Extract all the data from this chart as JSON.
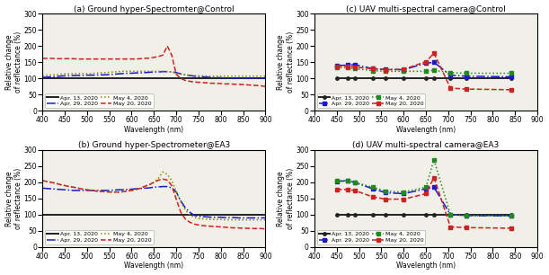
{
  "titles": [
    "(a) Ground hyper-Spectromter@Control",
    "(b) Ground hyper-Spectrometer@EA3",
    "(c) UAV multi-spectral camera@Control",
    "(d) UAV multi-spectral camera@EA3"
  ],
  "ylabel": "Relative change\nof reflectance (%)",
  "xlabel": "Wavelength (nm)",
  "ylim": [
    0,
    300
  ],
  "yticks": [
    0,
    50,
    100,
    150,
    200,
    250,
    300
  ],
  "legend_labels": [
    "Apr. 13, 2020",
    "Apr. 29, 2020",
    "May 4, 2020",
    "May 20, 2020"
  ],
  "colors_ground": [
    "#222222",
    "#1a1acc",
    "#888800",
    "#cc2222"
  ],
  "colors_uav": [
    "#222222",
    "#1a1acc",
    "#228822",
    "#cc2222"
  ],
  "linestyles": [
    "-",
    "-.",
    ":",
    "--"
  ],
  "linewidths": [
    1.4,
    1.1,
    1.1,
    1.1
  ],
  "background_color": "#ffffff",
  "panel_bg": "#f0f0e8",
  "ground_x": [
    400,
    410,
    420,
    430,
    440,
    450,
    460,
    470,
    480,
    490,
    500,
    510,
    520,
    530,
    540,
    550,
    560,
    570,
    580,
    590,
    600,
    610,
    620,
    630,
    640,
    650,
    660,
    670,
    680,
    690,
    700,
    710,
    720,
    730,
    740,
    750,
    760,
    770,
    780,
    790,
    800,
    810,
    820,
    830,
    840,
    850,
    860,
    870,
    880,
    890,
    900
  ],
  "uav_x": [
    450,
    475,
    490,
    531,
    560,
    600,
    650,
    668,
    705,
    740,
    842
  ],
  "ground_control_apr13": [
    100,
    100,
    100,
    100,
    100,
    100,
    100,
    100,
    100,
    100,
    100,
    100,
    100,
    100,
    100,
    100,
    100,
    100,
    100,
    100,
    100,
    100,
    100,
    100,
    100,
    100,
    100,
    100,
    100,
    100,
    100,
    100,
    100,
    100,
    100,
    100,
    100,
    100,
    100,
    100,
    100,
    100,
    100,
    100,
    100,
    100,
    100,
    100,
    100,
    100,
    100
  ],
  "ground_control_apr29": [
    103,
    104,
    105,
    106,
    107,
    108,
    108,
    109,
    109,
    109,
    110,
    110,
    110,
    111,
    111,
    112,
    113,
    114,
    115,
    116,
    116,
    117,
    117,
    118,
    119,
    120,
    120,
    121,
    121,
    120,
    118,
    114,
    111,
    109,
    107,
    106,
    105,
    104,
    103,
    103,
    102,
    101,
    101,
    100,
    100,
    100,
    100,
    100,
    100,
    100,
    100
  ],
  "ground_control_may4": [
    108,
    110,
    111,
    112,
    113,
    114,
    114,
    115,
    115,
    115,
    115,
    115,
    116,
    117,
    118,
    119,
    120,
    121,
    122,
    122,
    122,
    122,
    122,
    122,
    122,
    122,
    122,
    122,
    121,
    120,
    116,
    113,
    111,
    110,
    109,
    108,
    108,
    107,
    107,
    107,
    107,
    107,
    107,
    107,
    107,
    107,
    107,
    107,
    107,
    107,
    107
  ],
  "ground_control_may20": [
    162,
    162,
    162,
    161,
    161,
    161,
    161,
    161,
    160,
    160,
    160,
    160,
    160,
    160,
    160,
    160,
    160,
    160,
    160,
    160,
    160,
    160,
    161,
    162,
    163,
    165,
    168,
    172,
    200,
    172,
    113,
    100,
    94,
    91,
    89,
    88,
    87,
    86,
    85,
    85,
    84,
    83,
    83,
    82,
    82,
    81,
    80,
    79,
    78,
    77,
    75
  ],
  "ground_ea3_apr13": [
    100,
    100,
    100,
    100,
    100,
    100,
    100,
    100,
    100,
    100,
    100,
    100,
    100,
    100,
    100,
    100,
    100,
    100,
    100,
    100,
    100,
    100,
    100,
    100,
    100,
    100,
    100,
    100,
    100,
    100,
    100,
    100,
    100,
    100,
    100,
    100,
    100,
    100,
    100,
    100,
    100,
    100,
    100,
    100,
    100,
    100,
    100,
    100,
    100,
    100,
    100
  ],
  "ground_ea3_apr29": [
    182,
    181,
    180,
    179,
    178,
    177,
    176,
    175,
    175,
    175,
    175,
    175,
    175,
    175,
    175,
    175,
    176,
    177,
    177,
    178,
    179,
    180,
    181,
    182,
    183,
    185,
    186,
    187,
    187,
    183,
    170,
    143,
    122,
    108,
    98,
    95,
    94,
    93,
    92,
    92,
    92,
    91,
    91,
    91,
    90,
    90,
    90,
    90,
    90,
    90,
    90
  ],
  "ground_ea3_may4": [
    205,
    203,
    200,
    197,
    193,
    190,
    187,
    185,
    182,
    179,
    177,
    175,
    173,
    172,
    171,
    170,
    170,
    170,
    171,
    173,
    175,
    178,
    182,
    188,
    193,
    200,
    213,
    232,
    225,
    205,
    172,
    140,
    115,
    100,
    92,
    88,
    87,
    86,
    85,
    85,
    85,
    84,
    84,
    84,
    84,
    84,
    84,
    84,
    84,
    84,
    84
  ],
  "ground_ea3_may20": [
    205,
    203,
    200,
    197,
    193,
    190,
    187,
    185,
    182,
    179,
    177,
    175,
    173,
    172,
    171,
    170,
    170,
    170,
    171,
    173,
    175,
    178,
    182,
    188,
    193,
    200,
    207,
    210,
    207,
    190,
    148,
    108,
    87,
    77,
    71,
    68,
    66,
    65,
    64,
    63,
    62,
    61,
    60,
    59,
    59,
    58,
    58,
    57,
    57,
    57,
    56
  ],
  "uav_control_apr13": [
    100,
    100,
    100,
    100,
    100,
    100,
    100,
    100,
    100,
    100,
    100
  ],
  "uav_control_apr29": [
    140,
    141,
    143,
    130,
    128,
    127,
    147,
    150,
    110,
    107,
    105
  ],
  "uav_control_may4": [
    133,
    133,
    130,
    124,
    122,
    122,
    122,
    125,
    118,
    116,
    116
  ],
  "uav_control_may20": [
    138,
    138,
    135,
    130,
    127,
    128,
    152,
    178,
    70,
    67,
    65
  ],
  "uav_ea3_apr13": [
    100,
    100,
    100,
    100,
    100,
    100,
    100,
    100,
    100,
    100,
    100
  ],
  "uav_ea3_apr29": [
    203,
    205,
    200,
    180,
    168,
    165,
    180,
    185,
    100,
    97,
    96
  ],
  "uav_ea3_may4": [
    205,
    205,
    200,
    185,
    173,
    170,
    185,
    270,
    100,
    97,
    96
  ],
  "uav_ea3_may20": [
    178,
    178,
    175,
    155,
    148,
    148,
    165,
    215,
    62,
    60,
    58
  ]
}
